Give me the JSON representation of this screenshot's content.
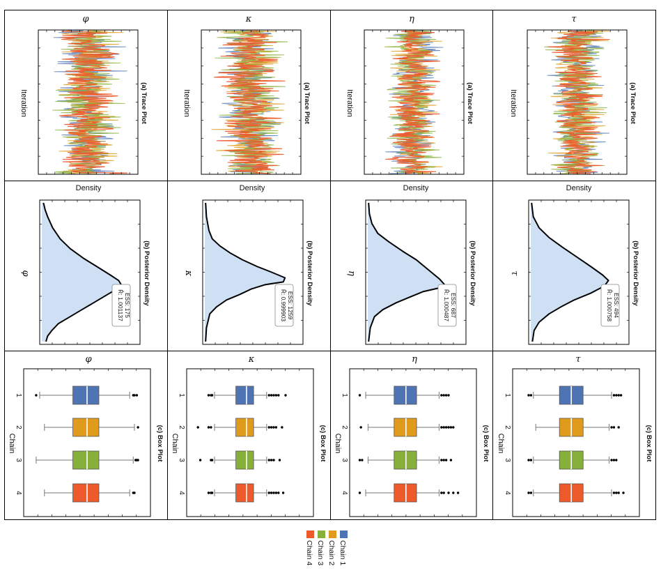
{
  "figure": {
    "parameters": [
      "φ",
      "κ",
      "η",
      "τ"
    ],
    "row_labels": {
      "trace": "(a) Trace Plot",
      "density": "(b) Posterior Density",
      "box": "(c) Box Plot"
    },
    "axis_labels": {
      "trace": "Iteration",
      "density": "Density",
      "box": "Chain"
    },
    "colors": {
      "chain1": "#4f74b4",
      "chain2": "#e09a1c",
      "chain3": "#86b03a",
      "chain4": "#ee5a2c",
      "density_fill": "#cfe0f5",
      "frame": "#000000"
    }
  },
  "chart_data": [
    {
      "type": "line",
      "panel": "trace",
      "title": "(a) Trace Plot",
      "xlabel": "Iteration",
      "series_names": [
        "Chain 1",
        "Chain 2",
        "Chain 3",
        "Chain 4"
      ],
      "parameters": [
        {
          "name": "φ",
          "center": 0.5,
          "spread": 0.42
        },
        {
          "name": "κ",
          "center": 0.5,
          "spread": 0.42
        },
        {
          "name": "η",
          "center": 0.5,
          "spread": 0.34
        },
        {
          "name": "τ",
          "center": 0.5,
          "spread": 0.38
        }
      ]
    },
    {
      "type": "area",
      "panel": "density",
      "title": "(b) Posterior Density",
      "ylabel": "Density",
      "parameters": [
        {
          "name": "φ",
          "r_hat": "R̂: 1.001137",
          "ess": "ESS: 175",
          "curve": [
            [
              0.0,
              0.02
            ],
            [
              0.05,
              0.04
            ],
            [
              0.1,
              0.07
            ],
            [
              0.18,
              0.13
            ],
            [
              0.26,
              0.22
            ],
            [
              0.33,
              0.34
            ],
            [
              0.4,
              0.5
            ],
            [
              0.46,
              0.66
            ],
            [
              0.52,
              0.82
            ],
            [
              0.56,
              0.92
            ],
            [
              0.59,
              0.95
            ],
            [
              0.62,
              0.9
            ],
            [
              0.67,
              0.76
            ],
            [
              0.72,
              0.62
            ],
            [
              0.77,
              0.48
            ],
            [
              0.82,
              0.34
            ],
            [
              0.87,
              0.2
            ],
            [
              0.92,
              0.12
            ],
            [
              0.96,
              0.07
            ],
            [
              1.0,
              0.05
            ]
          ]
        },
        {
          "name": "κ",
          "r_hat": "R̂: 0.999903",
          "ess": "ESS: 1259",
          "curve": [
            [
              0.0,
              0.01
            ],
            [
              0.1,
              0.02
            ],
            [
              0.2,
              0.05
            ],
            [
              0.26,
              0.09
            ],
            [
              0.31,
              0.18
            ],
            [
              0.36,
              0.3
            ],
            [
              0.41,
              0.45
            ],
            [
              0.46,
              0.63
            ],
            [
              0.5,
              0.8
            ],
            [
              0.54,
              0.96
            ],
            [
              0.57,
              0.94
            ],
            [
              0.59,
              0.72
            ],
            [
              0.62,
              0.56
            ],
            [
              0.66,
              0.42
            ],
            [
              0.7,
              0.26
            ],
            [
              0.75,
              0.14
            ],
            [
              0.8,
              0.06
            ],
            [
              0.9,
              0.02
            ],
            [
              1.0,
              0.01
            ]
          ]
        },
        {
          "name": "η",
          "r_hat": "R̂: 1.000487",
          "ess": "ESS: 687",
          "curve": [
            [
              0.0,
              0.01
            ],
            [
              0.08,
              0.02
            ],
            [
              0.15,
              0.05
            ],
            [
              0.22,
              0.12
            ],
            [
              0.28,
              0.25
            ],
            [
              0.35,
              0.42
            ],
            [
              0.41,
              0.58
            ],
            [
              0.48,
              0.72
            ],
            [
              0.55,
              0.86
            ],
            [
              0.59,
              0.92
            ],
            [
              0.61,
              0.88
            ],
            [
              0.64,
              0.66
            ],
            [
              0.68,
              0.5
            ],
            [
              0.72,
              0.34
            ],
            [
              0.77,
              0.18
            ],
            [
              0.82,
              0.08
            ],
            [
              0.9,
              0.03
            ],
            [
              1.0,
              0.01
            ]
          ]
        },
        {
          "name": "τ",
          "r_hat": "R̂: 1.000758",
          "ess": "ESS: 494",
          "curve": [
            [
              0.0,
              0.01
            ],
            [
              0.1,
              0.03
            ],
            [
              0.18,
              0.1
            ],
            [
              0.25,
              0.22
            ],
            [
              0.32,
              0.38
            ],
            [
              0.39,
              0.55
            ],
            [
              0.46,
              0.72
            ],
            [
              0.52,
              0.86
            ],
            [
              0.56,
              0.93
            ],
            [
              0.6,
              0.88
            ],
            [
              0.65,
              0.72
            ],
            [
              0.7,
              0.52
            ],
            [
              0.75,
              0.36
            ],
            [
              0.8,
              0.22
            ],
            [
              0.86,
              0.1
            ],
            [
              0.92,
              0.04
            ],
            [
              1.0,
              0.02
            ]
          ]
        }
      ]
    },
    {
      "type": "box",
      "panel": "box",
      "title": "(c) Box Plot",
      "xlabel": "Chain",
      "categories": [
        "1",
        "2",
        "3",
        "4"
      ],
      "parameters": [
        {
          "name": "φ",
          "stats": [
            {
              "min": 0.1,
              "q1": 0.38,
              "med": 0.5,
              "q3": 0.6,
              "max": 0.86,
              "out_low": [
                0.07
              ],
              "out_high": [
                0.89,
                0.9,
                0.92
              ]
            },
            {
              "min": 0.14,
              "q1": 0.38,
              "med": 0.5,
              "q3": 0.6,
              "max": 0.9,
              "out_low": [],
              "out_high": [
                0.93
              ]
            },
            {
              "min": 0.07,
              "q1": 0.38,
              "med": 0.5,
              "q3": 0.6,
              "max": 0.89,
              "out_low": [],
              "out_high": [
                0.91,
                0.92,
                0.93
              ]
            },
            {
              "min": 0.14,
              "q1": 0.38,
              "med": 0.5,
              "q3": 0.6,
              "max": 0.86,
              "out_low": [],
              "out_high": [
                0.89,
                0.9
              ]
            }
          ]
        },
        {
          "name": "κ",
          "stats": [
            {
              "min": 0.2,
              "q1": 0.38,
              "med": 0.47,
              "q3": 0.53,
              "max": 0.64,
              "out_low": [
                0.15,
                0.17,
                0.18
              ],
              "out_high": [
                0.66,
                0.68,
                0.7,
                0.72,
                0.74,
                0.8
              ]
            },
            {
              "min": 0.2,
              "q1": 0.38,
              "med": 0.47,
              "q3": 0.53,
              "max": 0.64,
              "out_low": [
                0.06,
                0.15,
                0.17
              ],
              "out_high": [
                0.66,
                0.68,
                0.7,
                0.72,
                0.77
              ]
            },
            {
              "min": 0.2,
              "q1": 0.38,
              "med": 0.47,
              "q3": 0.53,
              "max": 0.64,
              "out_low": [
                0.08,
                0.17,
                0.18
              ],
              "out_high": [
                0.66,
                0.68,
                0.7,
                0.75
              ]
            },
            {
              "min": 0.2,
              "q1": 0.38,
              "med": 0.47,
              "q3": 0.53,
              "max": 0.64,
              "out_low": [
                0.15,
                0.17,
                0.18
              ],
              "out_high": [
                0.66,
                0.68,
                0.7,
                0.72,
                0.74,
                0.78
              ]
            }
          ]
        },
        {
          "name": "η",
          "stats": [
            {
              "min": 0.1,
              "q1": 0.34,
              "med": 0.44,
              "q3": 0.53,
              "max": 0.72,
              "out_low": [
                0.05
              ],
              "out_high": [
                0.74,
                0.76,
                0.78,
                0.8
              ]
            },
            {
              "min": 0.12,
              "q1": 0.34,
              "med": 0.44,
              "q3": 0.53,
              "max": 0.72,
              "out_low": [
                0.06
              ],
              "out_high": [
                0.74,
                0.76,
                0.78,
                0.8,
                0.82,
                0.84
              ]
            },
            {
              "min": 0.12,
              "q1": 0.34,
              "med": 0.44,
              "q3": 0.53,
              "max": 0.72,
              "out_low": [
                0.05,
                0.07
              ],
              "out_high": [
                0.74,
                0.76,
                0.78,
                0.82
              ]
            },
            {
              "min": 0.1,
              "q1": 0.34,
              "med": 0.44,
              "q3": 0.53,
              "max": 0.72,
              "out_low": [
                0.05
              ],
              "out_high": [
                0.74,
                0.76,
                0.8,
                0.84,
                0.88
              ]
            }
          ]
        },
        {
          "name": "τ",
          "stats": [
            {
              "min": 0.14,
              "q1": 0.36,
              "med": 0.46,
              "q3": 0.56,
              "max": 0.8,
              "out_low": [
                0.1,
                0.12
              ],
              "out_high": [
                0.82,
                0.84,
                0.86,
                0.88
              ]
            },
            {
              "min": 0.16,
              "q1": 0.36,
              "med": 0.46,
              "q3": 0.56,
              "max": 0.78,
              "out_low": [],
              "out_high": [
                0.8,
                0.82,
                0.86
              ]
            },
            {
              "min": 0.14,
              "q1": 0.36,
              "med": 0.46,
              "q3": 0.56,
              "max": 0.78,
              "out_low": [
                0.1,
                0.12
              ],
              "out_high": [
                0.8,
                0.82,
                0.84
              ]
            },
            {
              "min": 0.14,
              "q1": 0.36,
              "med": 0.46,
              "q3": 0.56,
              "max": 0.8,
              "out_low": [
                0.1,
                0.12
              ],
              "out_high": [
                0.82,
                0.84,
                0.86,
                0.9
              ]
            }
          ]
        }
      ]
    }
  ],
  "legend": {
    "items": [
      {
        "label": "Chain 1",
        "color": "#4f74b4"
      },
      {
        "label": "Chain 2",
        "color": "#e09a1c"
      },
      {
        "label": "Chain 3",
        "color": "#86b03a"
      },
      {
        "label": "Chain 4",
        "color": "#ee5a2c"
      }
    ]
  }
}
